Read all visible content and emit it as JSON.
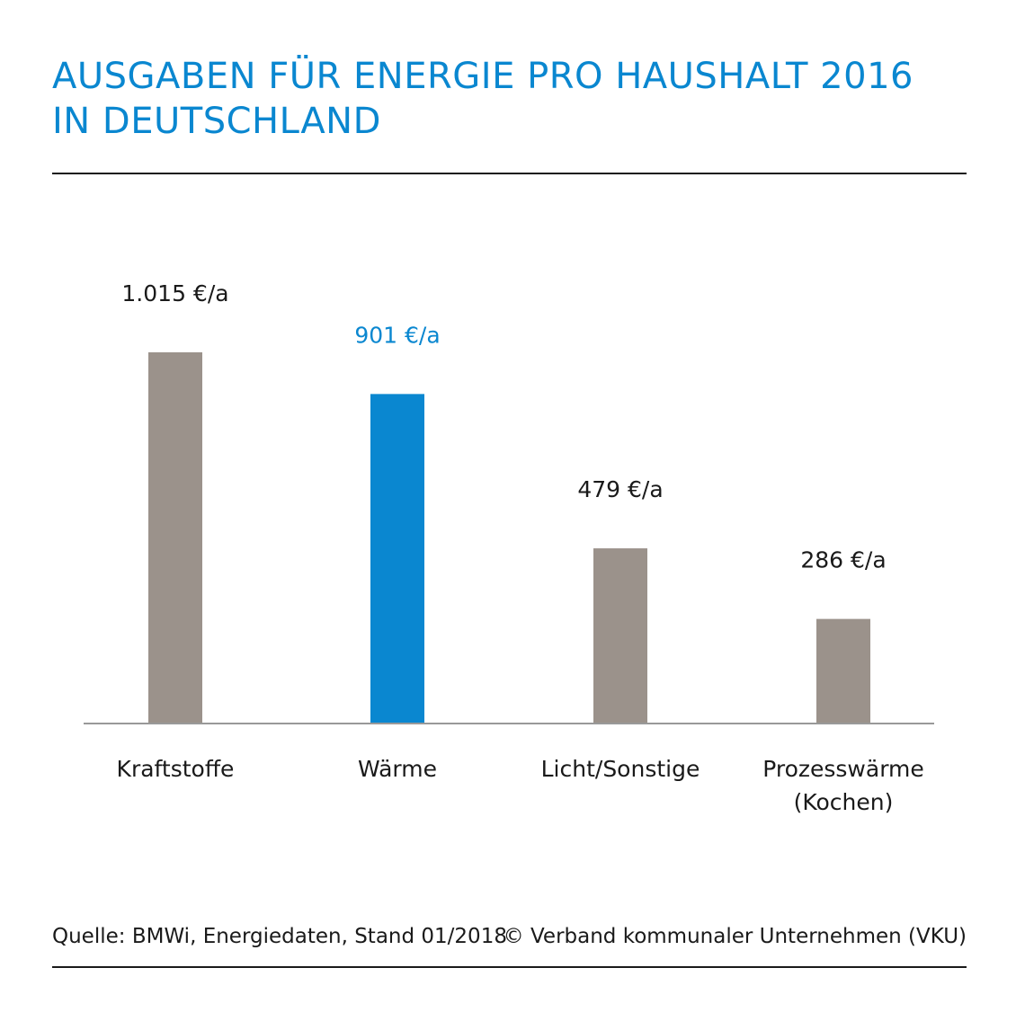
{
  "title": {
    "line1": "AUSGABEN FÜR ENERGIE PRO HAUSHALT 2016",
    "line2": "IN DEUTSCHLAND"
  },
  "footer": {
    "source": "Quelle: BMWi, Energiedaten, Stand 01/2018",
    "copyright": "© Verband kommunaler Unternehmen (VKU)"
  },
  "colors": {
    "accent": "#0a87d0",
    "bar": "#9b928b",
    "label": "#1a1a1a",
    "axis": "#999999"
  },
  "chart_data": {
    "type": "bar",
    "categories": [
      [
        "Kraftstoffe"
      ],
      [
        "Wärme"
      ],
      [
        "Licht/Sonstige"
      ],
      [
        "Prozesswärme",
        "(Kochen)"
      ]
    ],
    "values": [
      1015,
      901,
      479,
      286
    ],
    "value_labels": [
      "1.015 €/a",
      "901 €/a",
      "479 €/a",
      "286 €/a"
    ],
    "highlight_index": 1,
    "ylim": [
      0,
      1015
    ],
    "grid": false,
    "legend": "none"
  }
}
